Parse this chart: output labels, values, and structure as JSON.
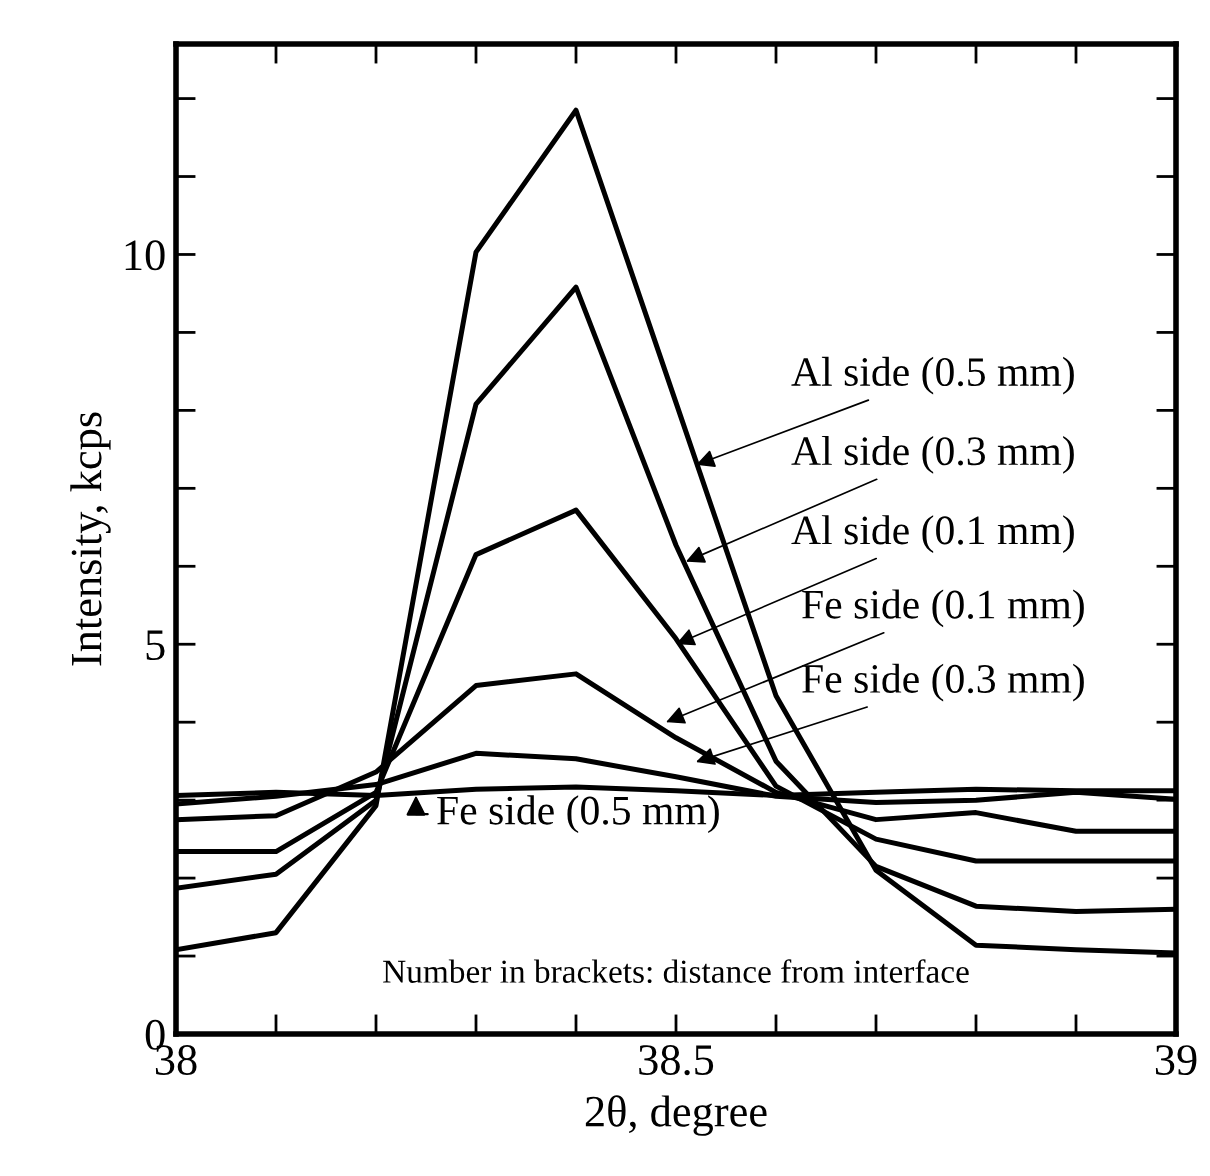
{
  "chart_data": {
    "type": "line",
    "xlabel": "2θ, degree",
    "ylabel": "Intensity, kcps",
    "x": [
      38,
      38.1,
      38.2,
      38.3,
      38.4,
      38.5,
      38.6,
      38.7,
      38.8,
      38.9,
      39
    ],
    "series": [
      {
        "color": "#000000",
        "values": [
          1.08,
          1.3,
          2.93,
          10.03,
          11.85,
          8.1,
          4.34,
          2.1,
          1.14,
          1.08,
          1.04
        ]
      },
      {
        "color": "#000000",
        "values": [
          1.87,
          2.05,
          3.0,
          8.08,
          9.58,
          6.27,
          3.5,
          2.15,
          1.64,
          1.57,
          1.6
        ]
      },
      {
        "color": "#000000",
        "values": [
          2.34,
          2.34,
          3.1,
          6.15,
          6.72,
          5.07,
          3.18,
          2.5,
          2.22,
          2.22,
          2.22
        ]
      },
      {
        "color": "#000000",
        "values": [
          2.75,
          2.8,
          3.36,
          4.47,
          4.62,
          3.8,
          3.1,
          2.75,
          2.84,
          2.6,
          2.6
        ]
      },
      {
        "color": "#000000",
        "values": [
          2.95,
          3.05,
          3.2,
          3.6,
          3.53,
          3.3,
          3.05,
          2.97,
          3.0,
          3.1,
          3.01
        ]
      },
      {
        "color": "#000000",
        "values": [
          3.06,
          3.1,
          3.06,
          3.14,
          3.17,
          3.12,
          3.06,
          3.1,
          3.14,
          3.12,
          3.12
        ]
      }
    ],
    "xlim": [
      38,
      39
    ],
    "ylim": [
      0,
      12.7
    ],
    "xticks": [
      38,
      {
        "value": 38.1,
        "label": null
      },
      {
        "value": 38.2,
        "label": null
      },
      {
        "value": 38.3,
        "label": null
      },
      {
        "value": 38.4,
        "label": null
      },
      38.5,
      {
        "value": 38.6,
        "label": null
      },
      {
        "value": 38.7,
        "label": null
      },
      {
        "value": 38.8,
        "label": null
      },
      {
        "value": 38.9,
        "label": null
      },
      39
    ],
    "yticks": [
      0,
      {
        "value": 1,
        "label": null
      },
      {
        "value": 2,
        "label": null
      },
      {
        "value": 3,
        "label": null
      },
      {
        "value": 4,
        "label": null
      },
      5,
      {
        "value": 6,
        "label": null
      },
      {
        "value": 7,
        "label": null
      },
      {
        "value": 8,
        "label": null
      },
      {
        "value": 9,
        "label": null
      },
      10,
      {
        "value": 11,
        "label": null
      },
      {
        "value": 12,
        "label": null
      }
    ],
    "grid": false,
    "legend": false,
    "line_style": "solid",
    "marker": "none",
    "annotations": [
      {
        "text": "Al side (0.5 mm)",
        "x": 38.52,
        "y": 7.3
      },
      {
        "text": "Al side (0.3 mm)",
        "x": 38.51,
        "y": 6.06
      },
      {
        "text": "Al side (0.1 mm)",
        "x": 38.5,
        "y": 5.0
      },
      {
        "text": "Fe side (0.1 mm)",
        "x": 38.49,
        "y": 4.0
      },
      {
        "text": "Fe side (0.3 mm)",
        "x": 38.52,
        "y": 3.49
      },
      {
        "text": "Fe side (0.5 mm)",
        "x": 38.24,
        "y": 3.06
      },
      "Number in brackets: distance from interface"
    ]
  }
}
